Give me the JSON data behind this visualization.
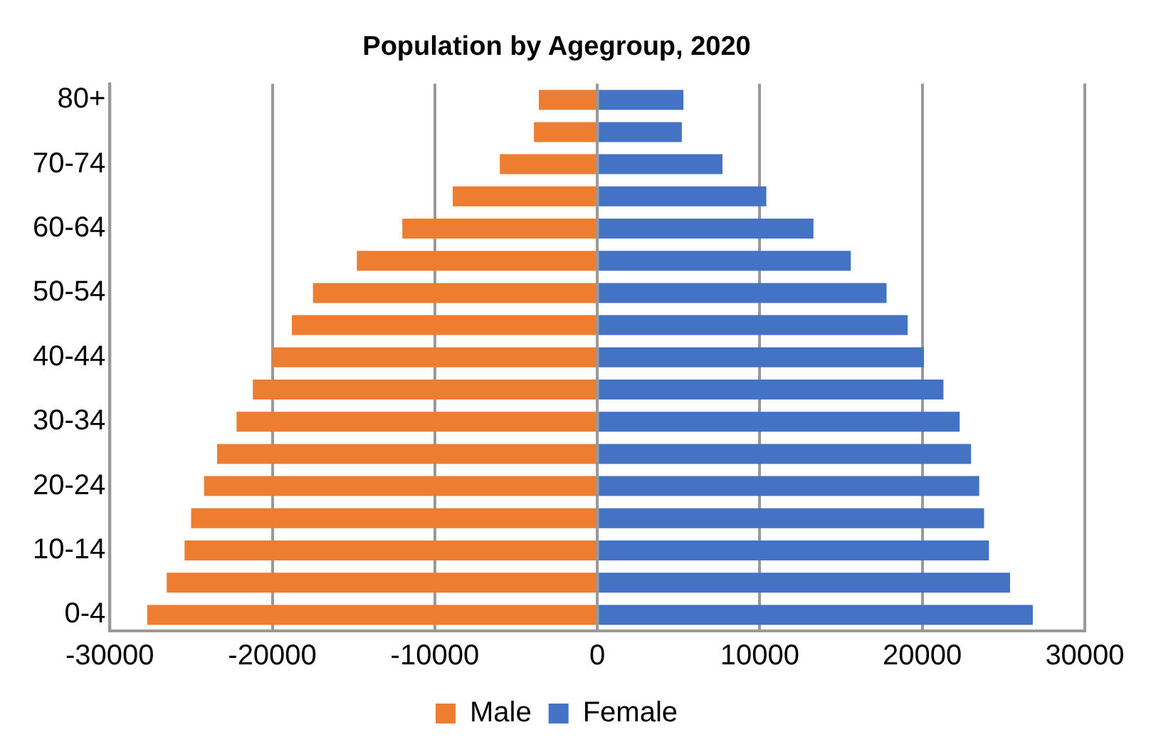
{
  "chart_data": {
    "type": "bar",
    "orientation": "horizontal",
    "stacked": true,
    "title": "Population by Agegroup, 2020",
    "categories": [
      "80+",
      null,
      "70-74",
      null,
      "60-64",
      null,
      "50-54",
      null,
      "40-44",
      null,
      "30-34",
      null,
      "20-24",
      null,
      "10-14",
      null,
      "0-4"
    ],
    "series": [
      {
        "name": "Male",
        "color": "#ed7d31",
        "values": [
          -3600,
          -3900,
          -6000,
          -8900,
          -12000,
          -14800,
          -17500,
          -18800,
          -20000,
          -21200,
          -22200,
          -23400,
          -24200,
          -25000,
          -25400,
          -26500,
          -27700
        ]
      },
      {
        "name": "Female",
        "color": "#4472c4",
        "values": [
          5300,
          5200,
          7700,
          10400,
          13300,
          15600,
          17800,
          19100,
          20100,
          21300,
          22300,
          23000,
          23500,
          23800,
          24100,
          25400,
          26800
        ]
      }
    ],
    "xlim": [
      -30000,
      30000
    ],
    "xticks": [
      -30000,
      -20000,
      -10000,
      0,
      10000,
      20000,
      30000
    ],
    "grid": "x",
    "legend": "bottom"
  }
}
